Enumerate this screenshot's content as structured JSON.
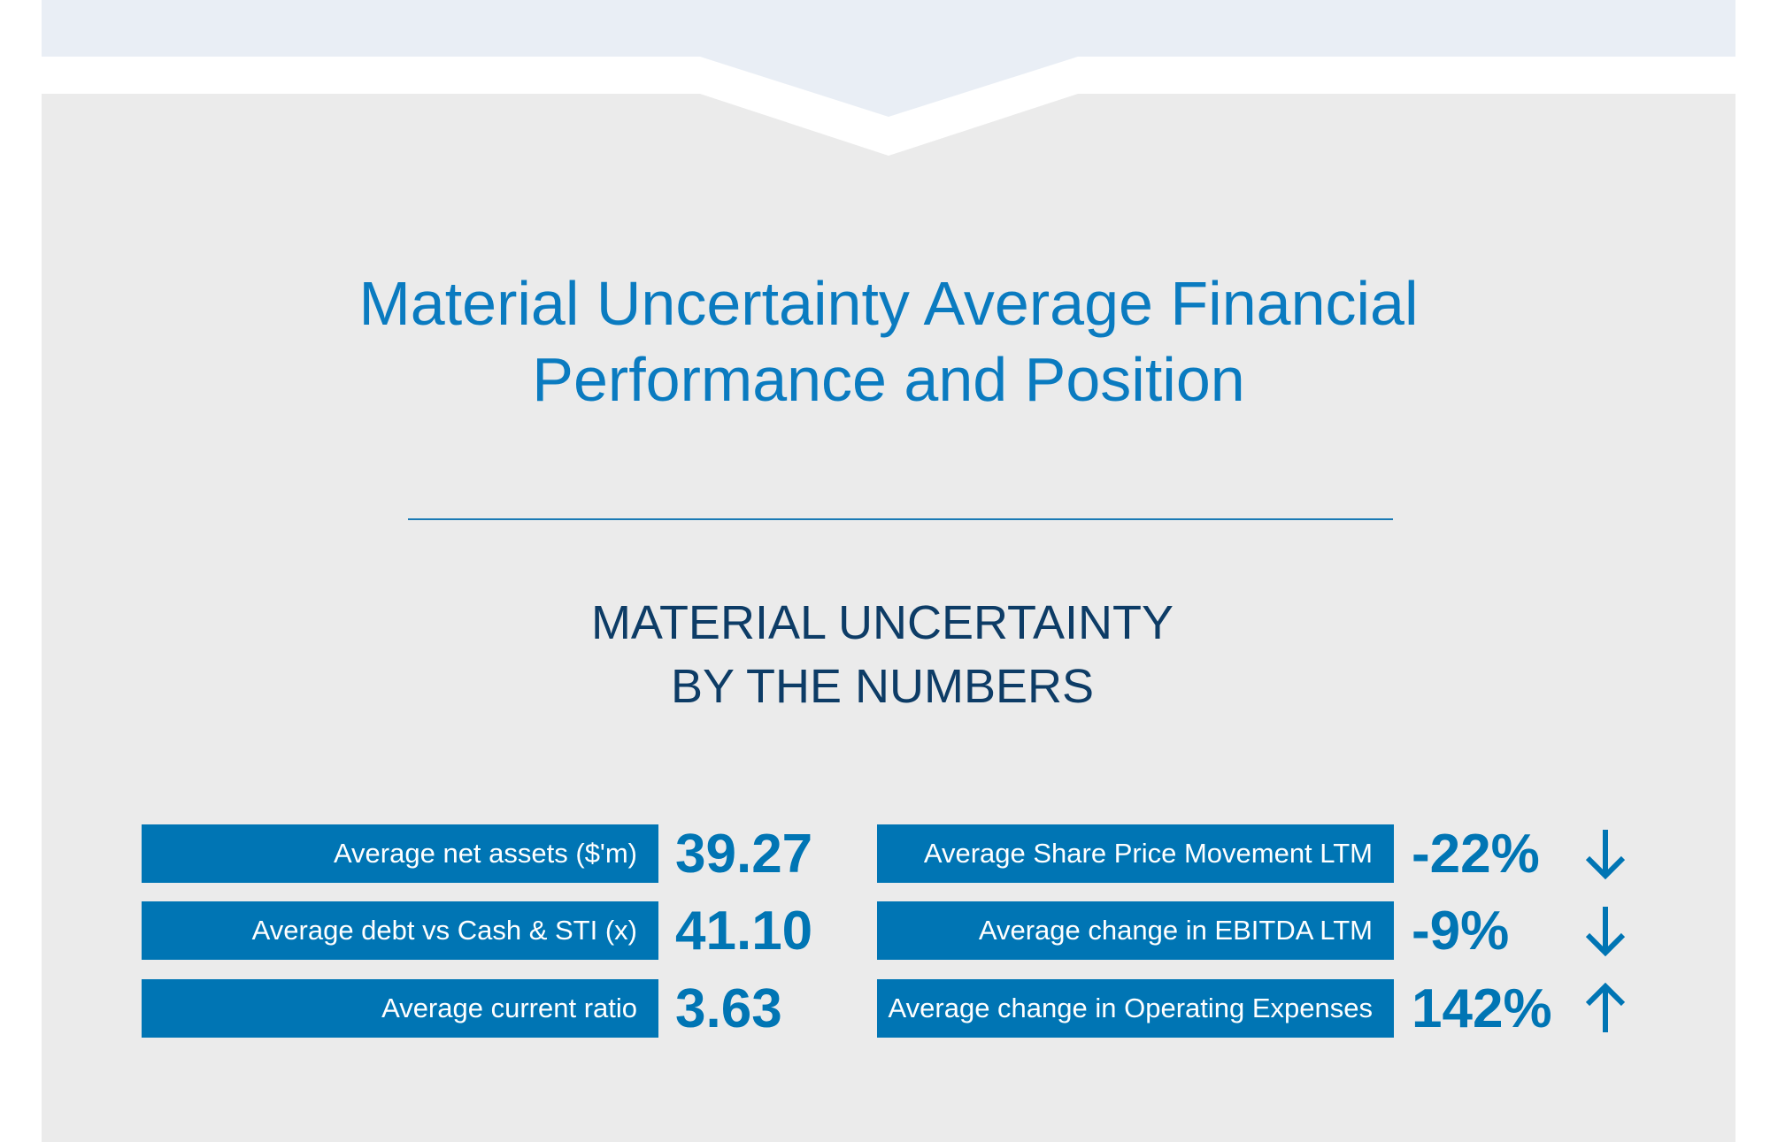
{
  "colors": {
    "title": "#0a7bc0",
    "accent": "#1a7ab5",
    "navy": "#0d3c66",
    "box": "#0075b4",
    "panel": "#ebebeb",
    "band": "#e9eef5"
  },
  "title": {
    "line1": "Material Uncertainty Average Financial",
    "line2": "Performance and Position"
  },
  "subtitle": {
    "line1": "MATERIAL UNCERTAINTY",
    "line2": "BY THE NUMBERS"
  },
  "left_metrics": [
    {
      "label": "Average net assets ($'m)",
      "value": "39.27"
    },
    {
      "label": "Average debt vs Cash & STI (x)",
      "value": "41.10"
    },
    {
      "label": "Average current ratio",
      "value": "3.63"
    }
  ],
  "right_metrics": [
    {
      "label": "Average Share Price Movement LTM",
      "value": "-22%",
      "trend": "down"
    },
    {
      "label": "Average change in EBITDA LTM",
      "value": "-9%",
      "trend": "down"
    },
    {
      "label": "Average change in Operating Expenses",
      "value": "142%",
      "trend": "up"
    }
  ]
}
